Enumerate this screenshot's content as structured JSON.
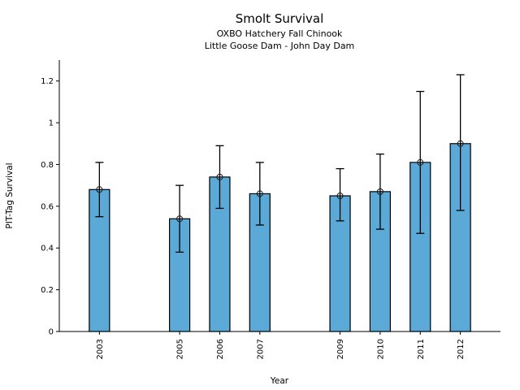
{
  "chart_data": {
    "type": "bar",
    "title": "Smolt Survival",
    "subtitle1": "OXBO Hatchery Fall Chinook",
    "subtitle2": "Little Goose Dam - John Day Dam",
    "xlabel": "Year",
    "ylabel": "PIT-Tag Survival",
    "categories": [
      2003,
      2005,
      2006,
      2007,
      2009,
      2010,
      2011,
      2012
    ],
    "values": [
      0.68,
      0.54,
      0.74,
      0.66,
      0.65,
      0.67,
      0.81,
      0.9
    ],
    "error_low": [
      0.55,
      0.38,
      0.59,
      0.51,
      0.53,
      0.49,
      0.47,
      0.58
    ],
    "error_high": [
      0.81,
      0.7,
      0.89,
      0.81,
      0.78,
      0.85,
      1.15,
      1.23
    ],
    "xlim": [
      2002,
      2013
    ],
    "ylim": [
      0,
      1.3
    ],
    "yticks": [
      0,
      0.2,
      0.4,
      0.6,
      0.8,
      1,
      1.2
    ],
    "ytick_labels": [
      "0",
      "0.2",
      "0.4",
      "0.6",
      "0.8",
      "1",
      "1.2"
    ],
    "xtick_label_rotation_deg": 90,
    "grid": false,
    "legend": null,
    "marker": "open-circle",
    "bar_color": "#5BA9D6",
    "bar_edge_color": "#000000",
    "error_bar_color": "#000000",
    "marker_edge_color": "#1a1a1a",
    "axis_color": "#000000",
    "background_color": "#ffffff"
  }
}
